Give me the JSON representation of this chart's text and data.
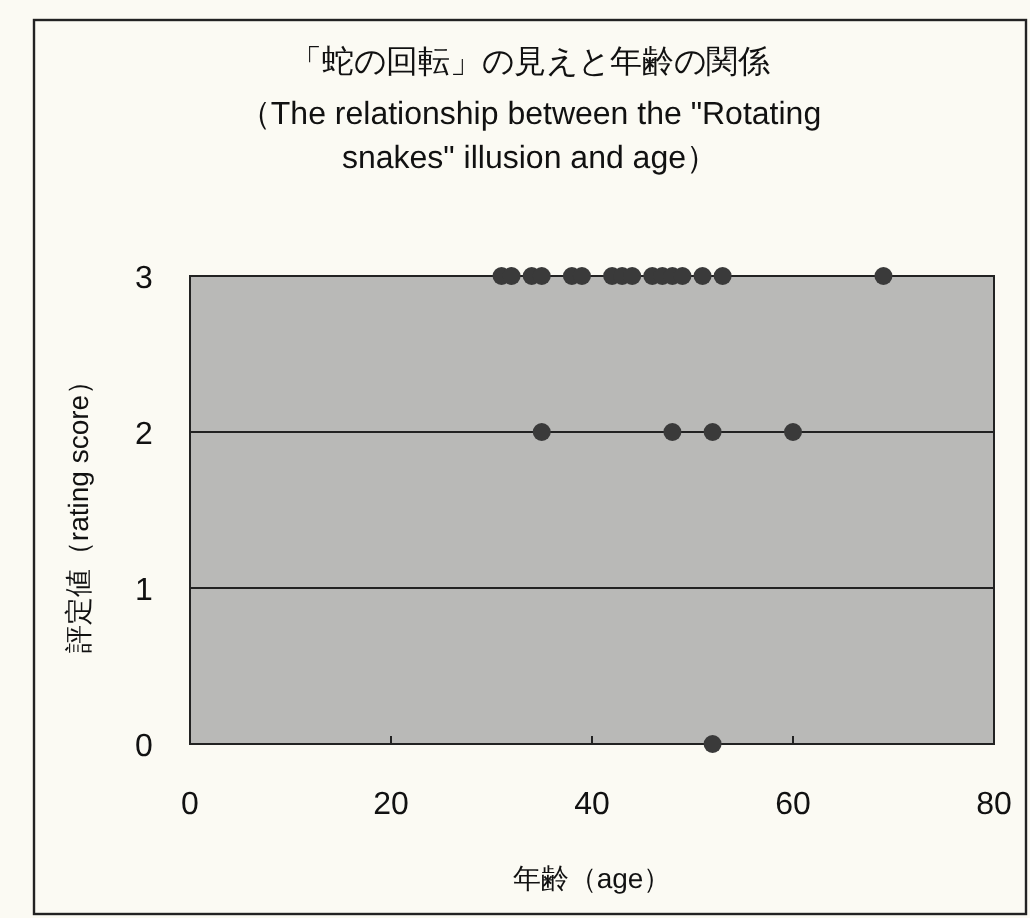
{
  "chart_data": {
    "type": "scatter",
    "title": "「蛇の回転」の見えと年齢の関係",
    "subtitle": "（The relationship between the \"Rotating snakes\" illusion and age）",
    "xlabel": "年齢（age）",
    "ylabel": "評定値（rating score）",
    "series": [
      {
        "color": "#3a3a3a",
        "x": [
          31,
          32,
          34,
          35,
          38,
          39,
          42,
          43,
          44,
          46,
          47,
          48,
          49,
          51,
          53,
          69,
          35,
          48,
          52,
          60,
          52
        ],
        "values": [
          3,
          3,
          3,
          3,
          3,
          3,
          3,
          3,
          3,
          3,
          3,
          3,
          3,
          3,
          3,
          3,
          2,
          2,
          2,
          2,
          0
        ]
      }
    ],
    "xlim": [
      0,
      80
    ],
    "xticks": [
      0,
      20,
      40,
      60,
      80
    ],
    "ylim": [
      0,
      3
    ],
    "yticks": [
      0,
      1,
      2,
      3
    ],
    "grid": "y",
    "marker": "circle"
  }
}
